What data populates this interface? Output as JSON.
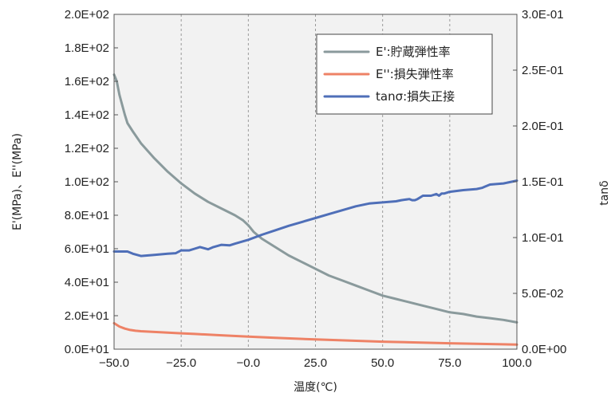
{
  "chart_data": {
    "type": "line",
    "xlabel": "温度(℃)",
    "ylabel_left": "E'(MPa)、E''(MPa)",
    "ylabel_right": "tanδ",
    "xlim": [
      -50,
      100
    ],
    "ylim_left": [
      0,
      200
    ],
    "ylim_right": [
      0,
      0.3
    ],
    "x_ticks": [
      "−50.0",
      "−25.0",
      "−0.0",
      "25.0",
      "50.0",
      "75.0",
      "100.0"
    ],
    "y_left_ticks": [
      "0.0E+01",
      "2.0E+01",
      "4.0E+01",
      "6.0E+01",
      "8.0E+01",
      "1.0E+02",
      "1.2E+02",
      "1.4E+02",
      "1.6E+02",
      "1.8E+02",
      "2.0E+02"
    ],
    "y_right_ticks": [
      "0.0E+00",
      "5.0E-02",
      "1.0E-01",
      "1.5E-01",
      "2.0E-01",
      "2.5E-01",
      "3.0E-01"
    ],
    "grid": "vertical dashed",
    "legend_position": "top-right",
    "series": [
      {
        "name": "E':貯蔵弾性率",
        "axis": "left",
        "color": "#8a9a9c",
        "x": [
          -50,
          -49,
          -48,
          -47,
          -46,
          -45,
          -43,
          -40,
          -35,
          -30,
          -25,
          -20,
          -15,
          -10,
          -5,
          -2,
          0,
          2,
          5,
          10,
          15,
          20,
          25,
          30,
          35,
          40,
          45,
          50,
          55,
          60,
          65,
          70,
          75,
          80,
          85,
          90,
          95,
          100
        ],
        "y": [
          164,
          160,
          152,
          146,
          140,
          135,
          130,
          123,
          114,
          106,
          99,
          93,
          88,
          84,
          80,
          77,
          74,
          70,
          66,
          61,
          56,
          52,
          48,
          44,
          41,
          38,
          35,
          32,
          30,
          28,
          26,
          24,
          22,
          21,
          19.5,
          18.5,
          17.5,
          16
        ]
      },
      {
        "name": "E'':損失弾性率",
        "axis": "left",
        "color": "#ee8266",
        "x": [
          -50,
          -48,
          -46,
          -44,
          -42,
          -40,
          -35,
          -30,
          -25,
          -20,
          -10,
          0,
          10,
          25,
          50,
          75,
          100
        ],
        "y": [
          15.5,
          13.5,
          12.3,
          11.5,
          11,
          10.7,
          10.3,
          9.9,
          9.5,
          9.1,
          8.3,
          7.5,
          6.8,
          5.8,
          4.5,
          3.5,
          2.7
        ]
      },
      {
        "name": "tanσ:損失正接",
        "axis": "right",
        "color": "#4f6fb8",
        "x": [
          -50,
          -45,
          -43,
          -40,
          -35,
          -30,
          -27,
          -25,
          -22,
          -20,
          -18,
          -15,
          -13,
          -10,
          -7,
          -5,
          0,
          5,
          10,
          15,
          20,
          25,
          30,
          35,
          40,
          45,
          50,
          55,
          57,
          60,
          61,
          62,
          63,
          65,
          68,
          70,
          71,
          72,
          73,
          75,
          80,
          85,
          87,
          88,
          90,
          95,
          100
        ],
        "y": [
          0.0875,
          0.0875,
          0.0855,
          0.0835,
          0.0845,
          0.0855,
          0.086,
          0.0885,
          0.0885,
          0.09,
          0.0915,
          0.0895,
          0.0915,
          0.0935,
          0.093,
          0.0945,
          0.098,
          0.1025,
          0.1065,
          0.1105,
          0.114,
          0.1175,
          0.121,
          0.1245,
          0.128,
          0.1305,
          0.1315,
          0.1325,
          0.1335,
          0.1345,
          0.1335,
          0.1335,
          0.1345,
          0.1375,
          0.1375,
          0.139,
          0.1375,
          0.1395,
          0.1395,
          0.141,
          0.1425,
          0.1435,
          0.1445,
          0.1455,
          0.1475,
          0.1485,
          0.151
        ]
      }
    ]
  }
}
